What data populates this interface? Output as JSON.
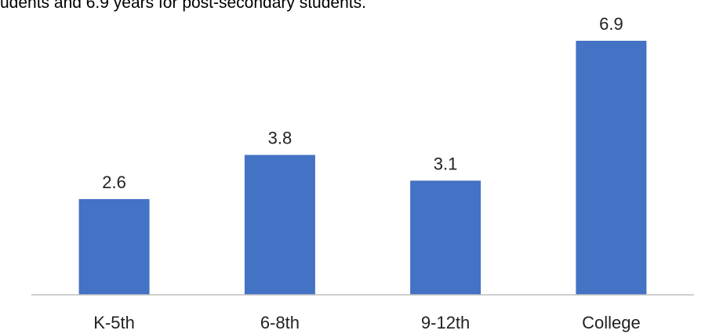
{
  "header": {
    "text": "udents and 6.9 years for post-secondary students."
  },
  "colors": {
    "bar": "#4472C4",
    "axis": "#BFBFBF",
    "label": "#222222"
  },
  "chart_data": {
    "type": "bar",
    "categories": [
      "K-5th",
      "6-8th",
      "9-12th",
      "College"
    ],
    "values": [
      2.6,
      3.8,
      3.1,
      6.9
    ],
    "value_labels": [
      "2.6",
      "3.8",
      "3.1",
      "6.9"
    ],
    "title": "",
    "xlabel": "",
    "ylabel": "",
    "ylim": [
      0,
      7
    ],
    "grid": false,
    "legend": "none"
  }
}
